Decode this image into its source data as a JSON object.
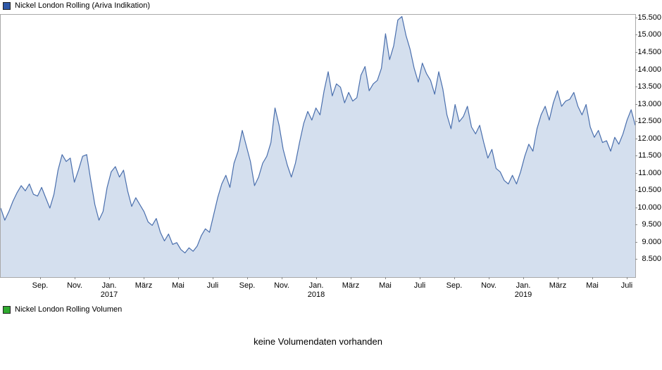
{
  "legend_price": {
    "label": "Nickel London Rolling (Ariva Indikation)",
    "color": "#2e58a8"
  },
  "legend_volume": {
    "label": "Nickel London Rolling Volumen",
    "color": "#2faa2f"
  },
  "volume_panel": {
    "message": "keine Volumendaten vorhanden"
  },
  "chart_data": {
    "type": "area",
    "title": "Nickel London Rolling (Ariva Indikation)",
    "x_start": "2016-07",
    "x_end": "2019-07",
    "ylim": [
      8000,
      15600
    ],
    "grid": false,
    "legend_position": "top-left",
    "line_color": "#4a6fad",
    "fill_color": "#d4dfee",
    "yticks": [
      "15.500",
      "15.000",
      "14.500",
      "14.000",
      "13.500",
      "13.000",
      "12.500",
      "12.000",
      "11.500",
      "11.000",
      "10.500",
      "10.000",
      "9.500",
      "9.000",
      "8.500"
    ],
    "xticks": [
      {
        "label": "Sep."
      },
      {
        "label": "Nov."
      },
      {
        "label": "Jan.",
        "year": "2017"
      },
      {
        "label": "März"
      },
      {
        "label": "Mai"
      },
      {
        "label": "Juli"
      },
      {
        "label": "Sep."
      },
      {
        "label": "Nov."
      },
      {
        "label": "Jan.",
        "year": "2018"
      },
      {
        "label": "März"
      },
      {
        "label": "Mai"
      },
      {
        "label": "Juli"
      },
      {
        "label": "Sep."
      },
      {
        "label": "Nov."
      },
      {
        "label": "Jan.",
        "year": "2019"
      },
      {
        "label": "März"
      },
      {
        "label": "Mai"
      },
      {
        "label": "Juli"
      }
    ],
    "values": [
      10000,
      9650,
      9900,
      10200,
      10450,
      10650,
      10500,
      10700,
      10400,
      10350,
      10600,
      10300,
      10000,
      10400,
      11100,
      11550,
      11350,
      11450,
      10750,
      11100,
      11500,
      11550,
      10800,
      10100,
      9650,
      9900,
      10600,
      11050,
      11200,
      10900,
      11100,
      10500,
      10050,
      10300,
      10100,
      9900,
      9600,
      9500,
      9700,
      9300,
      9050,
      9250,
      8950,
      9000,
      8800,
      8700,
      8850,
      8750,
      8900,
      9200,
      9400,
      9300,
      9800,
      10300,
      10700,
      10950,
      10600,
      11300,
      11650,
      12250,
      11800,
      11350,
      10650,
      10900,
      11300,
      11500,
      11900,
      12900,
      12400,
      11700,
      11250,
      10900,
      11300,
      11900,
      12450,
      12800,
      12550,
      12900,
      12700,
      13400,
      13950,
      13250,
      13600,
      13500,
      13050,
      13350,
      13100,
      13200,
      13850,
      14100,
      13400,
      13600,
      13700,
      14050,
      15050,
      14300,
      14700,
      15450,
      15550,
      15000,
      14600,
      14050,
      13650,
      14200,
      13900,
      13700,
      13300,
      13950,
      13450,
      12700,
      12300,
      13000,
      12500,
      12650,
      12950,
      12350,
      12150,
      12400,
      11900,
      11450,
      11700,
      11150,
      11050,
      10800,
      10700,
      10950,
      10700,
      11050,
      11500,
      11850,
      11650,
      12300,
      12700,
      12950,
      12550,
      13050,
      13400,
      12950,
      13100,
      13150,
      13350,
      12950,
      12700,
      13000,
      12350,
      12050,
      12250,
      11900,
      11950,
      11650,
      12050,
      11850,
      12150,
      12550,
      12850,
      12400
    ]
  }
}
